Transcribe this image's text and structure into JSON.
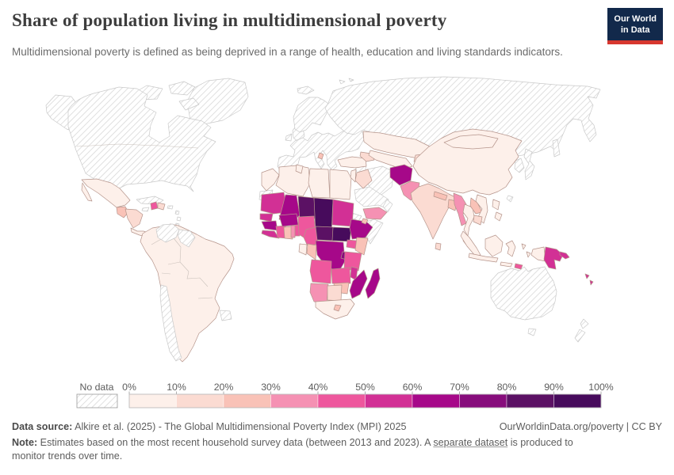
{
  "header": {
    "title": "Share of population living in multidimensional poverty",
    "subtitle": "Multidimensional poverty is defined as being deprived in a range of health, education and living standards indicators.",
    "logo": {
      "line1": "Our World",
      "line2": "in Data",
      "bg_color": "#12294b",
      "bar_color": "#d7372f"
    }
  },
  "legend": {
    "no_data_label": "No data",
    "tick_labels": [
      "0%",
      "10%",
      "20%",
      "30%",
      "40%",
      "50%",
      "60%",
      "70%",
      "80%",
      "90%",
      "100%"
    ]
  },
  "map": {
    "country_border": "#b5948b",
    "no_data_border": "#c9c9c9",
    "hatch_color": "#d8d8d8",
    "ocean_color": "#ffffff"
  },
  "chart_data": {
    "type": "choropleth",
    "title": "Share of population living in multidimensional poverty",
    "unit": "%",
    "legend_bins": [
      {
        "key": "no-data",
        "label": "No data",
        "color": "hatch"
      },
      {
        "key": "0-10",
        "label": "0%-10%",
        "color": "#fdf0ea"
      },
      {
        "key": "10-20",
        "label": "10%-20%",
        "color": "#fbdbd2"
      },
      {
        "key": "20-30",
        "label": "20%-30%",
        "color": "#f9c2b7"
      },
      {
        "key": "30-40",
        "label": "30%-40%",
        "color": "#f591b3"
      },
      {
        "key": "40-50",
        "label": "40%-50%",
        "color": "#ee579d"
      },
      {
        "key": "50-60",
        "label": "50%-60%",
        "color": "#d23095"
      },
      {
        "key": "60-70",
        "label": "60%-70%",
        "color": "#a60889"
      },
      {
        "key": "70-80",
        "label": "70%-80%",
        "color": "#870d7c"
      },
      {
        "key": "80-90",
        "label": "80%-90%",
        "color": "#5b1164"
      },
      {
        "key": "90-100",
        "label": "90%-100%",
        "color": "#470b5c"
      }
    ],
    "regions": {
      "greenland": "no-data",
      "arctic-islands-1": "no-data",
      "arctic-islands-2": "no-data",
      "arctic-islands-3": "no-data",
      "alaska": "no-data",
      "canada-usa": "no-data",
      "cuba": "no-data",
      "jamaica": "no-data",
      "puerto-rico": "no-data",
      "antilles-1": "no-data",
      "antilles-2": "no-data",
      "antilles-3": "no-data",
      "venezuela": "no-data",
      "guyanas": "no-data",
      "chile": "no-data",
      "uruguay": "no-data",
      "iceland": "no-data",
      "uk": "no-data",
      "ireland": "no-data",
      "scandinavia": "no-data",
      "svalbard-1": "no-data",
      "svalbard-2": "no-data",
      "europe": "no-data",
      "russia": "no-data",
      "sakhalin": "no-data",
      "syria": "no-data",
      "iran": "no-data",
      "saudi-arabia": "no-data",
      "oman": "no-data",
      "somalia": "no-data",
      "eritrea": "no-data",
      "western-sahara": "no-data",
      "korea": "no-data",
      "japan": "no-data",
      "taiwan": "no-data",
      "australia": "no-data",
      "tasmania": "no-data",
      "new-zealand-north": "no-data",
      "new-zealand-south": "no-data",
      "mexico": "0-10",
      "baja-california": "0-10",
      "guatemala": "20-30",
      "honduras-nicaragua": "10-20",
      "costa-rica-panama": "0-10",
      "haiti": "40-50",
      "dominican-republic": "10-20",
      "south-america": "0-10",
      "morocco": "0-10",
      "algeria": "0-10",
      "tunisia": "0-10",
      "libya": "0-10",
      "egypt": "0-10",
      "mauritania": "50-60",
      "mali": "60-70",
      "niger": "80-90",
      "chad": "90-100",
      "sudan": "50-60",
      "senegal": "50-60",
      "guinea": "60-70",
      "sierra-leone-liberia": "50-60",
      "cote-divoire": "40-50",
      "ghana": "20-30",
      "togo": "30-40",
      "benin": "40-50",
      "burkina-faso": "60-70",
      "nigeria": "40-50",
      "cameroon": "40-50",
      "central-african-republic": "80-90",
      "south-sudan": "90-100",
      "ethiopia": "60-70",
      "djibouti": "20-30",
      "uganda": "40-50",
      "kenya": "20-30",
      "dr-congo": "60-70",
      "congo": "20-30",
      "gabon": "0-10",
      "rwanda-burundi": "70-80",
      "tanzania": "40-50",
      "angola": "40-50",
      "zambia": "40-50",
      "malawi": "50-60",
      "mozambique": "60-70",
      "zimbabwe": "20-30",
      "namibia": "30-40",
      "botswana": "10-20",
      "south-africa": "0-10",
      "lesotho": "20-30",
      "madagascar": "60-70",
      "albania": "20-30",
      "turkey": "0-10",
      "caucasus": "10-20",
      "iraq": "10-20",
      "jordan-levant": "0-10",
      "yemen": "30-40",
      "kazakhstan": "0-10",
      "uzbekistan-turkmenistan": "0-10",
      "kyrgyzstan-tajikistan": "10-20",
      "afghanistan": "60-70",
      "pakistan": "30-40",
      "india": "10-20",
      "nepal": "20-30",
      "bangladesh": "20-30",
      "sri-lanka": "10-20",
      "myanmar": "30-40",
      "thailand": "0-10",
      "laos": "20-30",
      "vietnam": "0-10",
      "cambodia": "10-20",
      "malaysia-peninsula": "0-10",
      "china": "0-10",
      "mongolia": "0-10",
      "philippines-1": "0-10",
      "philippines-2": "0-10",
      "sumatra": "0-10",
      "java": "0-10",
      "borneo": "0-10",
      "sulawesi": "0-10",
      "moluccas-1": "0-10",
      "moluccas-2": "0-10",
      "lesser-sunda": "0-10",
      "timor-leste": "40-50",
      "west-papua": "0-10",
      "papua-new-guinea": "50-60",
      "new-britain": "50-60",
      "solomons-1": "50-60",
      "solomons-2": "50-60"
    }
  },
  "footer": {
    "source_label": "Data source:",
    "source_text": " Alkire et al. (2025) - The Global Multidimensional Poverty Index (MPI) 2025",
    "rights": "OurWorldinData.org/poverty | CC BY",
    "note_label": "Note:",
    "note_pre": " Estimates based on the most recent household survey data (between 2013 and 2023). A ",
    "note_link": "separate dataset",
    "note_post": " is produced to monitor trends over time."
  }
}
